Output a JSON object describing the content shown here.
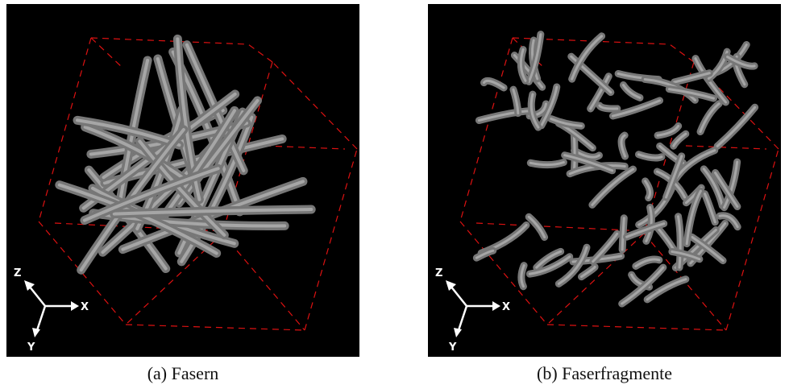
{
  "panels": [
    {
      "caption": "(a) Fasern",
      "axes": {
        "z": "Z",
        "x": "X",
        "y": "Y"
      }
    },
    {
      "caption": "(b) Faserfragmente",
      "axes": {
        "z": "Z",
        "x": "X",
        "y": "Y"
      }
    }
  ]
}
